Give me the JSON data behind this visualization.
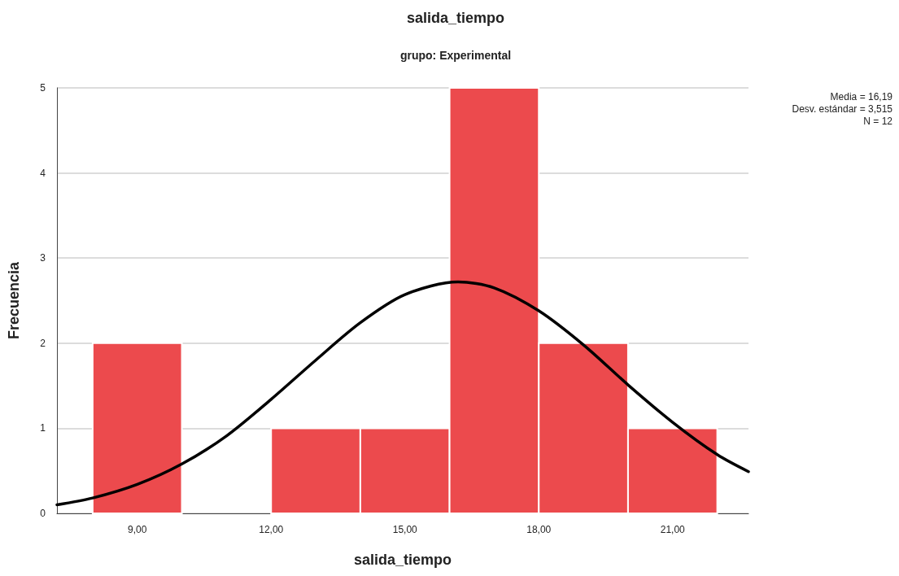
{
  "chart_data": {
    "type": "histogram",
    "title": "salida_tiempo",
    "subtitle": "grupo: Experimental",
    "xlabel": "salida_tiempo",
    "ylabel": "Frecuencia",
    "annotations": [
      "Media = 16,19",
      "Desv. estándar = 3,515",
      "N = 12"
    ],
    "series": [
      {
        "color": "#ec4a4d",
        "bins": [
          8,
          10,
          12,
          14,
          16,
          18,
          20,
          22
        ],
        "values": [
          2,
          0,
          1,
          1,
          5,
          2,
          1
        ]
      },
      {
        "type": "line",
        "color": "#000000",
        "x": [
          7.2,
          8,
          9,
          10,
          11,
          12,
          13,
          14,
          15,
          16.19,
          17,
          18,
          19,
          20,
          21,
          22,
          22.7
        ],
        "values": [
          0.1,
          0.18,
          0.34,
          0.58,
          0.91,
          1.34,
          1.8,
          2.24,
          2.57,
          2.72,
          2.65,
          2.38,
          1.98,
          1.51,
          1.07,
          0.69,
          0.49
        ]
      }
    ],
    "xlim": [
      7.2,
      22.7
    ],
    "xticks": [
      {
        "value": 9,
        "label": "9,00"
      },
      {
        "value": 12,
        "label": "12,00"
      },
      {
        "value": 15,
        "label": "15,00"
      },
      {
        "value": 18,
        "label": "18,00"
      },
      {
        "value": 21,
        "label": "21,00"
      }
    ],
    "ylim": [
      0,
      5
    ],
    "yticks": [
      0,
      1,
      2,
      3,
      4,
      5
    ],
    "grid": "y",
    "marker": "none",
    "line_style": "solid"
  }
}
